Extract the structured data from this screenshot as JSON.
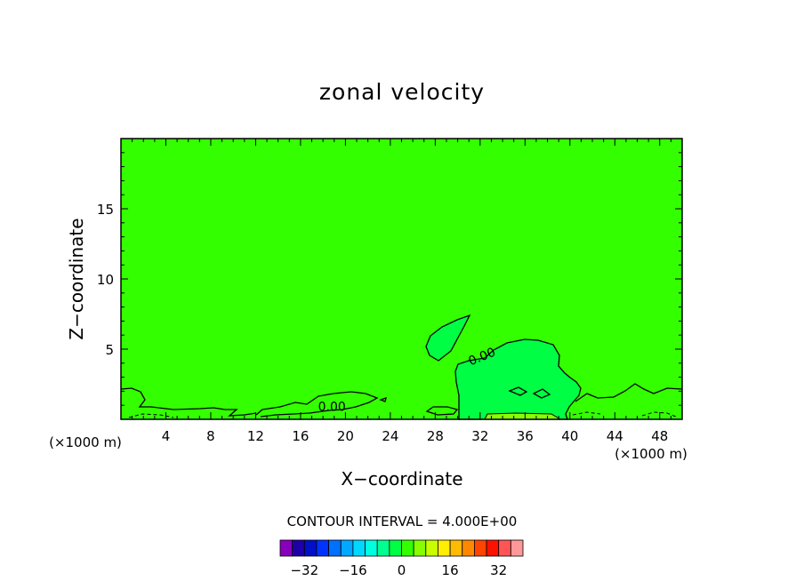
{
  "chart_data": {
    "type": "heatmap",
    "title": "zonal velocity",
    "xlabel": "X−coordinate",
    "ylabel": "Z−coordinate",
    "x_unit_left": "(×1000 m)",
    "x_unit_right": "(×1000 m)",
    "xlim": [
      0,
      50
    ],
    "ylim": [
      0,
      20
    ],
    "x_ticks": [
      4,
      8,
      12,
      16,
      20,
      24,
      28,
      32,
      36,
      40,
      44,
      48
    ],
    "y_ticks": [
      5,
      10,
      15
    ],
    "x_tick_labels": [
      "4",
      "8",
      "12",
      "16",
      "20",
      "24",
      "28",
      "32",
      "36",
      "40",
      "44",
      "48"
    ],
    "y_tick_labels": [
      "5",
      "10",
      "15"
    ],
    "contour_interval_text": "CONTOUR INTERVAL = 4.000E+00",
    "contour_labels": [
      {
        "text": "0.00",
        "x": 18.8,
        "z": 0.6
      },
      {
        "text": "0.00",
        "x": 32.3,
        "z": 4.2
      }
    ],
    "background_fill": "#33ff00",
    "positive_region_fill": "#00ff44",
    "colorbar": {
      "colors": [
        "#8800bb",
        "#1f00a8",
        "#0010c8",
        "#0033ff",
        "#0070ff",
        "#00a8ff",
        "#00d8ff",
        "#00ffe0",
        "#00ff90",
        "#00ff44",
        "#33ff00",
        "#88ff00",
        "#c8ff00",
        "#ffee00",
        "#ffbb00",
        "#ff8800",
        "#ff4400",
        "#ff1100",
        "#ff5555",
        "#ff9999"
      ],
      "tick_labels": [
        "−32",
        "−16",
        "0",
        "16",
        "32"
      ]
    }
  }
}
